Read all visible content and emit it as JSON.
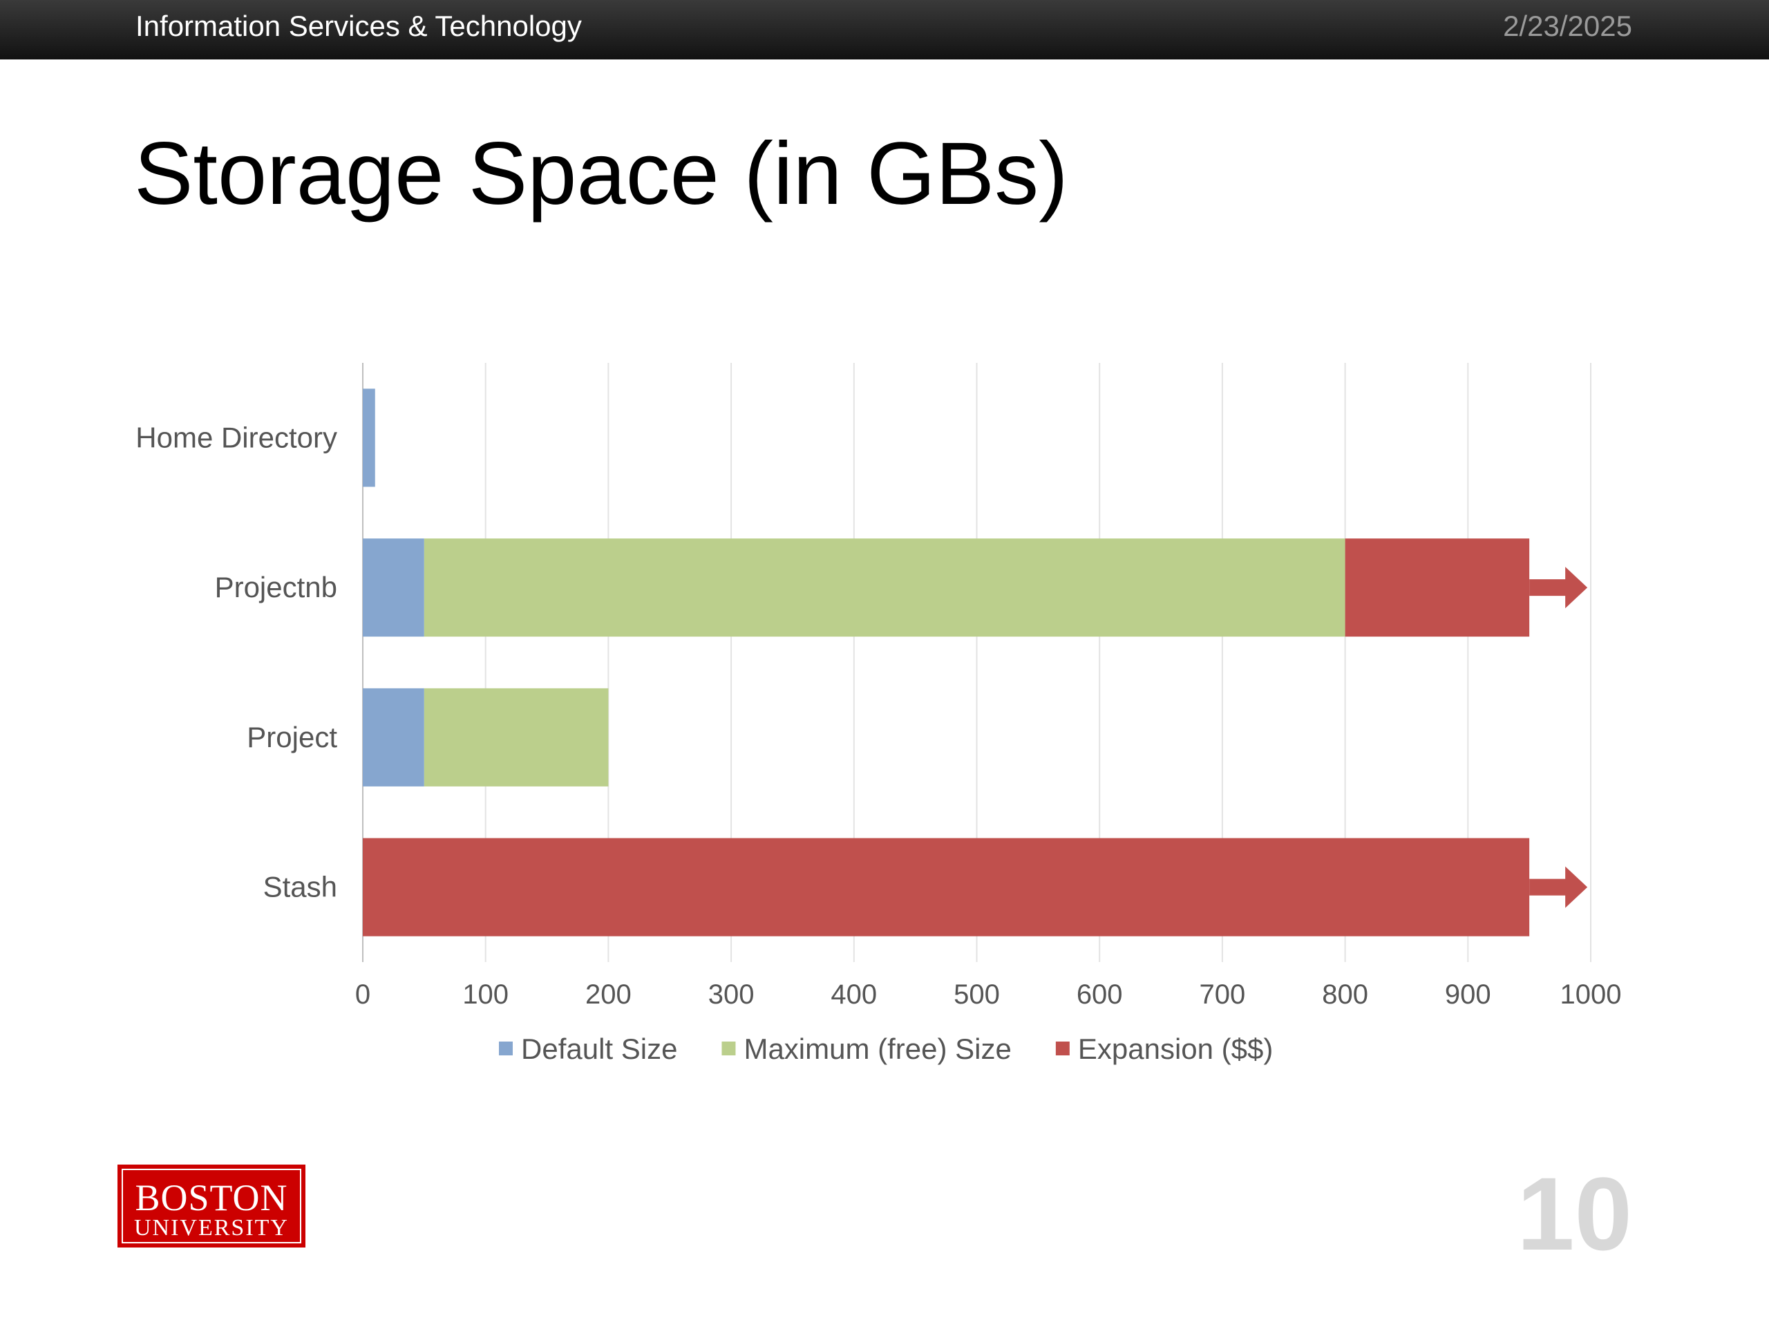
{
  "header": {
    "org": "Information Services & Technology",
    "date": "2/23/2025"
  },
  "slide": {
    "title": "Storage Space (in GBs)",
    "page_number": "10"
  },
  "logo": {
    "line1": "BOSTON",
    "line2": "UNIVERSITY"
  },
  "chart_data": {
    "type": "bar",
    "orientation": "horizontal",
    "stacked": true,
    "categories": [
      "Home Directory",
      "Projectnb",
      "Project",
      "Stash"
    ],
    "series": [
      {
        "name": "Default Size",
        "values": [
          10,
          50,
          50,
          0
        ],
        "color": "#86A6CF"
      },
      {
        "name": "Maximum (free) Size",
        "values": [
          0,
          750,
          150,
          0
        ],
        "color": "#BBCF8C"
      },
      {
        "name": "Expansion ($$)",
        "values": [
          0,
          150,
          0,
          950
        ],
        "color": "#C0504D"
      }
    ],
    "continues_beyond_axis": [
      "Projectnb",
      "Stash"
    ],
    "xlim": [
      0,
      1000
    ],
    "xticks": [
      "0",
      "100",
      "200",
      "300",
      "400",
      "500",
      "600",
      "700",
      "800",
      "900",
      "1000"
    ],
    "grid": true,
    "legend_position": "bottom"
  }
}
